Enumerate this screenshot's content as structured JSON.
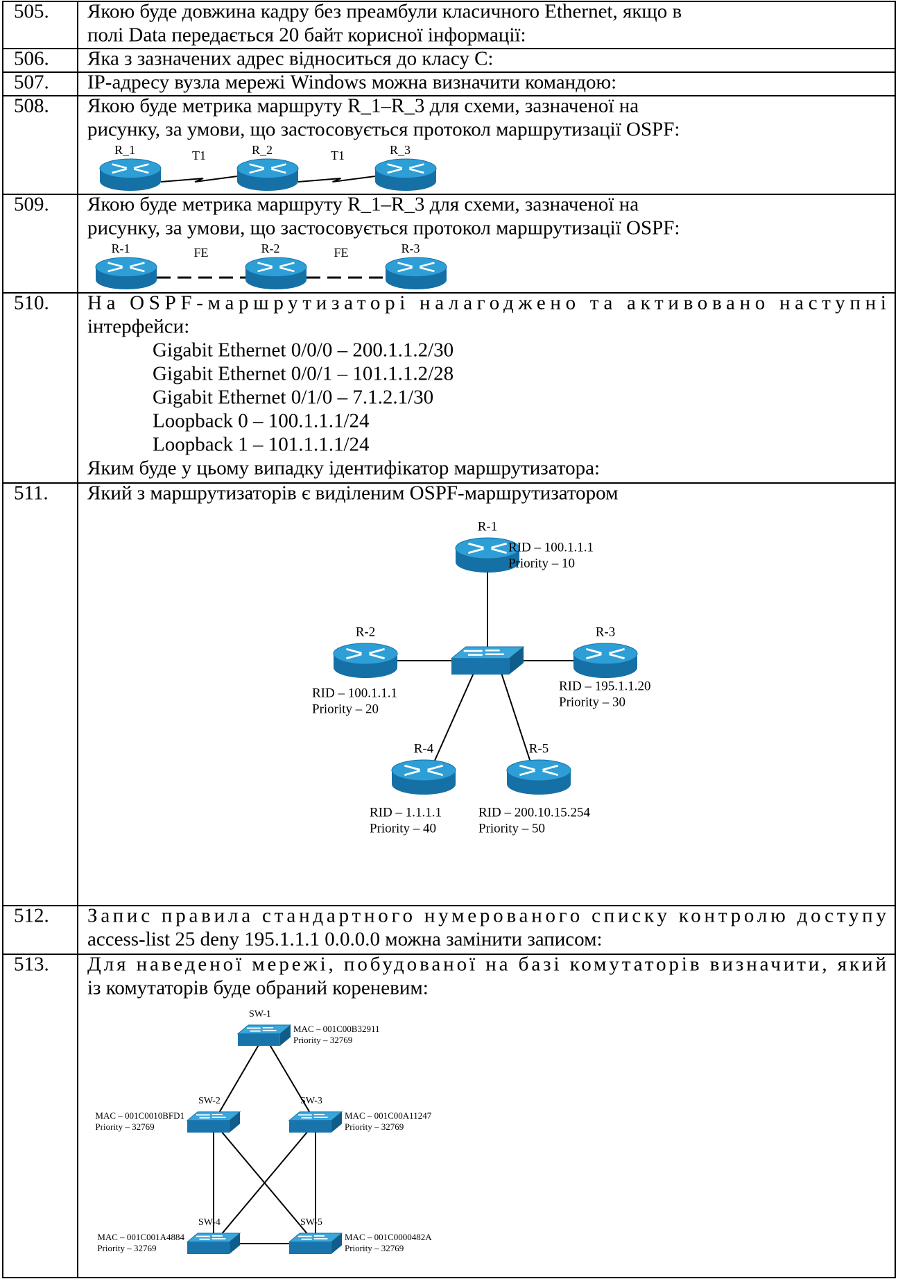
{
  "table": {
    "rows": [
      {
        "number": "505.",
        "lines": [
          "Якою буде довжина кадру без преамбули класичного Ethernet, якщо в",
          "полі Data передається 20 байт корисної інформації:"
        ]
      },
      {
        "number": "506.",
        "lines": [
          "Яка з зазначених адрес відноситься до класу С:"
        ]
      },
      {
        "number": "507.",
        "lines": [
          "IP-адресу вузла мережі Windows можна визначити командою:"
        ]
      },
      {
        "number": "508.",
        "lines": [
          "Якою буде метрика маршруту R_1–R_3 для схеми, зазначеної на",
          "рисунку, за умови, що застосовується протокол маршрутизації OSPF:"
        ],
        "diagram": {
          "routers": [
            "R_1",
            "R_2",
            "R_3"
          ],
          "links": [
            "T1",
            "T1"
          ]
        }
      },
      {
        "number": "509.",
        "lines": [
          "Якою буде метрика маршруту R_1–R_3 для схеми, зазначеної на",
          "рисунку, за умови, що застосовується протокол маршрутизації OSPF:"
        ],
        "diagram": {
          "routers": [
            "R-1",
            "R-2",
            "R-3"
          ],
          "links": [
            "FE",
            "FE"
          ]
        }
      },
      {
        "number": "510.",
        "lines": [
          "На OSPF-маршрутизаторі налагоджено та активовано наступні",
          "інтерфейси:"
        ],
        "interfaces": [
          "Gigabit Ethernet 0/0/0 – 200.1.1.2/30",
          "Gigabit Ethernet 0/0/1 – 101.1.1.2/28",
          "Gigabit Ethernet 0/1/0 – 7.1.2.1/30",
          "Loopback 0 – 100.1.1.1/24",
          "Loopback 1 – 101.1.1.1/24"
        ],
        "question": "Яким буде у цьому випадку ідентифікатор маршрутизатора:"
      },
      {
        "number": "511.",
        "lines": [
          "Який з маршрутизаторів є виділеним OSPF-маршрутизатором"
        ],
        "diagram": {
          "routers": [
            {
              "name": "R-1",
              "rid": "RID – 100.1.1.1",
              "priority": "Priority – 10"
            },
            {
              "name": "R-2",
              "rid": "RID – 100.1.1.1",
              "priority": "Priority – 20"
            },
            {
              "name": "R-3",
              "rid": "RID – 195.1.1.20",
              "priority": "Priority – 30"
            },
            {
              "name": "R-4",
              "rid": "RID – 1.1.1.1",
              "priority": "Priority – 40"
            },
            {
              "name": "R-5",
              "rid": "RID – 200.10.15.254",
              "priority": "Priority – 50"
            }
          ]
        }
      },
      {
        "number": "512.",
        "lines": [
          "Запис правила стандартного нумерованого списку контролю доступу",
          "access-list 25 deny 195.1.1.1 0.0.0.0 можна замінити записом:"
        ]
      },
      {
        "number": "513.",
        "lines": [
          "Для наведеної мережі, побудованої на базі комутаторів визначити, який",
          "із комутаторів буде обраний кореневим:"
        ],
        "diagram": {
          "switches": [
            {
              "name": "SW-1",
              "mac": "MAC – 001C00B32911",
              "priority": "Priority – 32769"
            },
            {
              "name": "SW-2",
              "mac": "MAC – 001C0010BFD1",
              "priority": "Priority – 32769"
            },
            {
              "name": "SW-3",
              "mac": "MAC – 001C00A11247",
              "priority": "Priority – 32769"
            },
            {
              "name": "SW-4",
              "mac": "MAC – 001C001A4884",
              "priority": "Priority – 32769"
            },
            {
              "name": "SW-5",
              "mac": "MAC – 001C0000482A",
              "priority": "Priority – 32769"
            }
          ]
        }
      }
    ]
  }
}
